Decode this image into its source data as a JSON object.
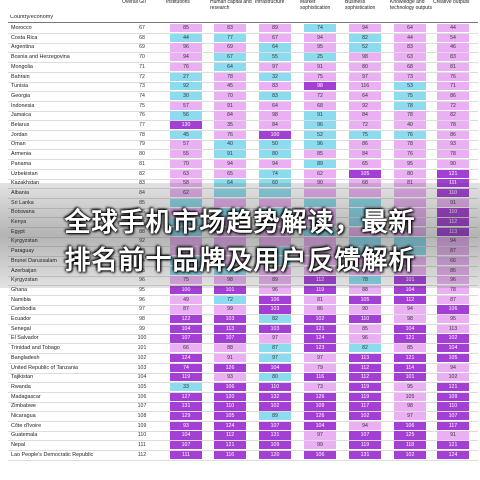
{
  "table": {
    "headers": [
      "Country/economy",
      "Overall GII",
      "Institutions",
      "Human capital and research",
      "Infrastructure",
      "Market sophistication",
      "Business sophistication",
      "Knowledge and technology outputs",
      "Creative outputs"
    ],
    "colors": {
      "pink": "#eab0f3",
      "blue": "#8cdbee",
      "purple": "#a43fd6",
      "white": "#ffffff"
    },
    "rows": [
      {
        "c": "Morocco",
        "v": [
          "67",
          "85",
          "83",
          "89",
          "74",
          "94",
          "64",
          "44"
        ],
        "k": "ppppbppp"
      },
      {
        "c": "Costa Rica",
        "v": [
          "68",
          "44",
          "77",
          "67",
          "94",
          "82",
          "44",
          "54"
        ],
        "k": "pbbppbpp"
      },
      {
        "c": "Argentina",
        "v": [
          "69",
          "96",
          "69",
          "64",
          "95",
          "52",
          "83",
          "46"
        ],
        "k": "pppbpbpp"
      },
      {
        "c": "Bosnia and Herzegovina",
        "v": [
          "70",
          "94",
          "67",
          "55",
          "25",
          "98",
          "63",
          "83"
        ],
        "k": "ppbbbppp"
      },
      {
        "c": "Mongolia",
        "v": [
          "71",
          "76",
          "64",
          "97",
          "91",
          "80",
          "68",
          "81"
        ],
        "k": "ppbppppp"
      },
      {
        "c": "Bahrain",
        "v": [
          "72",
          "27",
          "78",
          "32",
          "75",
          "97",
          "73",
          "76"
        ],
        "k": "pbpbpppp"
      },
      {
        "c": "Tunisia",
        "v": [
          "73",
          "92",
          "45",
          "83",
          "98",
          "116",
          "53",
          "71"
        ],
        "k": "pbppwpbp"
      },
      {
        "c": "Georgia",
        "v": [
          "74",
          "30",
          "70",
          "83",
          "72",
          "64",
          "75",
          "86"
        ],
        "k": "pbpbppbp"
      },
      {
        "c": "Indonesia",
        "v": [
          "75",
          "57",
          "91",
          "64",
          "68",
          "92",
          "78",
          "72"
        ],
        "k": "ppppppbp"
      },
      {
        "c": "Jamaica",
        "v": [
          "76",
          "56",
          "84",
          "98",
          "91",
          "84",
          "78",
          "82"
        ],
        "k": "pbppbppp"
      },
      {
        "c": "Belarus",
        "v": [
          "77",
          "130",
          "35",
          "84",
          "96",
          "72",
          "40",
          "78"
        ],
        "k": "pwppbppp"
      },
      {
        "c": "Jordan",
        "v": [
          "78",
          "45",
          "76",
          "100",
          "52",
          "75",
          "76",
          "86"
        ],
        "k": "pbpwbbbp"
      },
      {
        "c": "Oman",
        "v": [
          "79",
          "57",
          "40",
          "50",
          "96",
          "86",
          "78",
          "93"
        ],
        "k": "ppbbbppp"
      },
      {
        "c": "Armenia",
        "v": [
          "80",
          "55",
          "91",
          "80",
          "85",
          "84",
          "76",
          "78"
        ],
        "k": "ppbbpppp"
      },
      {
        "c": "Panama",
        "v": [
          "81",
          "70",
          "94",
          "94",
          "89",
          "65",
          "95",
          "90"
        ],
        "k": "ppppbppp"
      },
      {
        "c": "Uzbekistan",
        "v": [
          "82",
          "63",
          "65",
          "74",
          "62",
          "105",
          "80",
          "121"
        ],
        "k": "pppbpwpw"
      },
      {
        "c": "Kazakhstan",
        "v": [
          "83",
          "58",
          "64",
          "60",
          "90",
          "68",
          "81",
          "111"
        ],
        "k": "ppbbpppw"
      },
      {
        "c": "Albania",
        "v": [
          "84",
          "62",
          "",
          "",
          "",
          "",
          "",
          "110"
        ],
        "k": "ppbbpppw"
      },
      {
        "c": "Sri Lanka",
        "v": [
          "85",
          "",
          "",
          "",
          "",
          "",
          "",
          "91"
        ],
        "k": "pbppbbpp"
      },
      {
        "c": "Botswana",
        "v": [
          "86",
          "",
          "",
          "",
          "",
          "",
          "",
          "110"
        ],
        "k": "ppbbpbpw"
      },
      {
        "c": "Kenya",
        "v": [
          "87",
          "",
          "",
          "",
          "",
          "",
          "",
          "112"
        ],
        "k": "pbpppbpw"
      },
      {
        "c": "Egypt",
        "v": [
          "88",
          "",
          "",
          "",
          "",
          "",
          "",
          "113"
        ],
        "k": "pbppbppw"
      },
      {
        "c": "Kyrgyzstan",
        "v": [
          "92",
          "",
          "",
          "",
          "",
          "",
          "",
          "94"
        ],
        "k": "pppppbbp"
      },
      {
        "c": "Paraguay",
        "v": [
          "93",
          "",
          "",
          "",
          "",
          "",
          "",
          "87"
        ],
        "k": "pppbpbbp"
      },
      {
        "c": "Brunei Darussalam",
        "v": [
          "94",
          "",
          "",
          "",
          "",
          "",
          "",
          "66"
        ],
        "k": "pbpbpppp"
      },
      {
        "c": "Azerbaijan",
        "v": [
          "95",
          "",
          "",
          "",
          "",
          "",
          "",
          "86"
        ],
        "k": "pbbppppp"
      },
      {
        "c": "Kyrgyzstan",
        "v": [
          "96",
          "75",
          "98",
          "89",
          "112",
          "78",
          "101",
          "96"
        ],
        "k": "ppppwbwp"
      },
      {
        "c": "Ghana",
        "v": [
          "95",
          "100",
          "101",
          "96",
          "119",
          "88",
          "104",
          "78"
        ],
        "k": "pwwpwpwp"
      },
      {
        "c": "Namibia",
        "v": [
          "96",
          "49",
          "72",
          "106",
          "81",
          "105",
          "112",
          "87"
        ],
        "k": "ppbwpwwp"
      },
      {
        "c": "Cambodia",
        "v": [
          "97",
          "87",
          "99",
          "103",
          "86",
          "90",
          "94",
          "106"
        ],
        "k": "pppwpppw"
      },
      {
        "c": "Ecuador",
        "v": [
          "98",
          "122",
          "103",
          "82",
          "102",
          "110",
          "98",
          "95"
        ],
        "k": "pwwbwwpp"
      },
      {
        "c": "Senegal",
        "v": [
          "99",
          "104",
          "113",
          "103",
          "121",
          "85",
          "104",
          "113"
        ],
        "k": "pwwwwpwp"
      },
      {
        "c": "El Salvador",
        "v": [
          "100",
          "107",
          "107",
          "97",
          "124",
          "96",
          "121",
          "102"
        ],
        "k": "wwwpwpww"
      },
      {
        "c": "Trinidad and Tobago",
        "v": [
          "101",
          "66",
          "88",
          "87",
          "123",
          "82",
          "85",
          "104"
        ],
        "k": "pppbwbpw"
      },
      {
        "c": "Bangladesh",
        "v": [
          "102",
          "124",
          "91",
          "97",
          "97",
          "113",
          "121",
          "105"
        ],
        "k": "wwpbpwww"
      },
      {
        "c": "United Republic of Tanzania",
        "v": [
          "103",
          "74",
          "126",
          "104",
          "79",
          "112",
          "114",
          "94"
        ],
        "k": "pwwwpwwp"
      },
      {
        "c": "Tajikistan",
        "v": [
          "104",
          "119",
          "93",
          "80",
          "116",
          "112",
          "101",
          "102"
        ],
        "k": "wwpbwwwp"
      },
      {
        "c": "Rwanda",
        "v": [
          "105",
          "33",
          "106",
          "110",
          "73",
          "119",
          "95",
          "121"
        ],
        "k": "pbwwpwpw"
      },
      {
        "c": "Madagascar",
        "v": [
          "106",
          "127",
          "120",
          "132",
          "126",
          "119",
          "105",
          "109"
        ],
        "k": "wwwwwwpw"
      },
      {
        "c": "Zimbabwe",
        "v": [
          "107",
          "131",
          "110",
          "102",
          "109",
          "117",
          "98",
          "110"
        ],
        "k": "wwwwwwpw"
      },
      {
        "c": "Nicaragua",
        "v": [
          "108",
          "129",
          "105",
          "89",
          "126",
          "102",
          "97",
          "107"
        ],
        "k": "wwwbwwpw"
      },
      {
        "c": "Côte d'Ivoire",
        "v": [
          "109",
          "93",
          "124",
          "107",
          "104",
          "94",
          "106",
          "117"
        ],
        "k": "pwwwwpww"
      },
      {
        "c": "Guatemala",
        "v": [
          "110",
          "104",
          "112",
          "131",
          "97",
          "107",
          "125",
          "91"
        ],
        "k": "wwwwpwwp"
      },
      {
        "c": "Nepal",
        "v": [
          "111",
          "107",
          "121",
          "109",
          "99",
          "119",
          "118",
          "121"
        ],
        "k": "wwwwpwww"
      },
      {
        "c": "Lao People's Democratic Republic",
        "v": [
          "112",
          "111",
          "116",
          "120",
          "106",
          "131",
          "102",
          "124"
        ],
        "k": "wwwwwwww"
      }
    ]
  },
  "headline": {
    "line1": "全球手机市场趋势解读，最新",
    "line2": "排名前十品牌及用户反馈解析"
  }
}
